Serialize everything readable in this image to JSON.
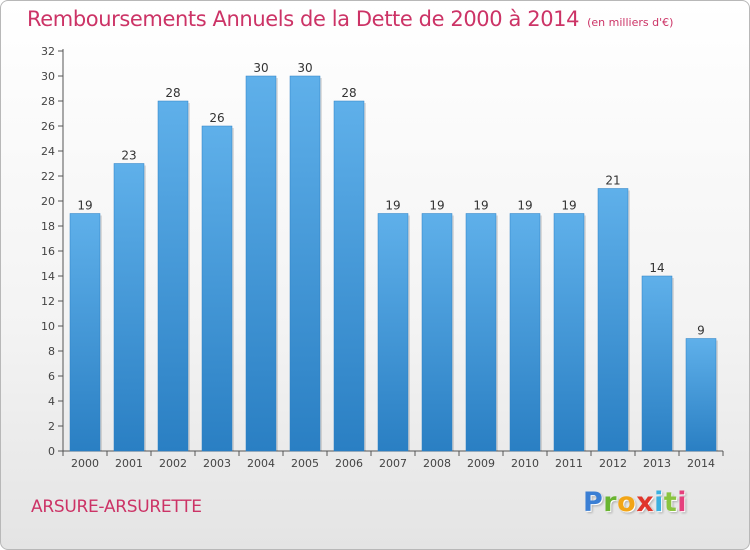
{
  "header": {
    "title": "Remboursements Annuels de la Dette de 2000 à 2014",
    "subtitle": "(en milliers d'€)"
  },
  "footer": {
    "commune": "ARSURE-ARSURETTE",
    "logo_text": "Proxiti"
  },
  "colors": {
    "title": "#cc3366",
    "bar_top": "#5fb0ea",
    "bar_bottom": "#2a7fc3",
    "axis": "#555555",
    "grid": "#d9d9d9"
  },
  "chart_data": {
    "type": "bar",
    "title": "Remboursements Annuels de la Dette de 2000 à 2014",
    "subtitle": "(en milliers d'€)",
    "xlabel": "",
    "ylabel": "",
    "categories": [
      "2000",
      "2001",
      "2002",
      "2003",
      "2004",
      "2005",
      "2006",
      "2007",
      "2008",
      "2009",
      "2010",
      "2011",
      "2012",
      "2013",
      "2014"
    ],
    "values": [
      19,
      23,
      28,
      26,
      30,
      30,
      28,
      19,
      19,
      19,
      19,
      19,
      21,
      14,
      9
    ],
    "ylim": [
      0,
      32
    ],
    "yticks": [
      0,
      2,
      4,
      6,
      8,
      10,
      12,
      14,
      16,
      18,
      20,
      22,
      24,
      26,
      28,
      30,
      32
    ],
    "grid": false,
    "data_labels": true
  }
}
